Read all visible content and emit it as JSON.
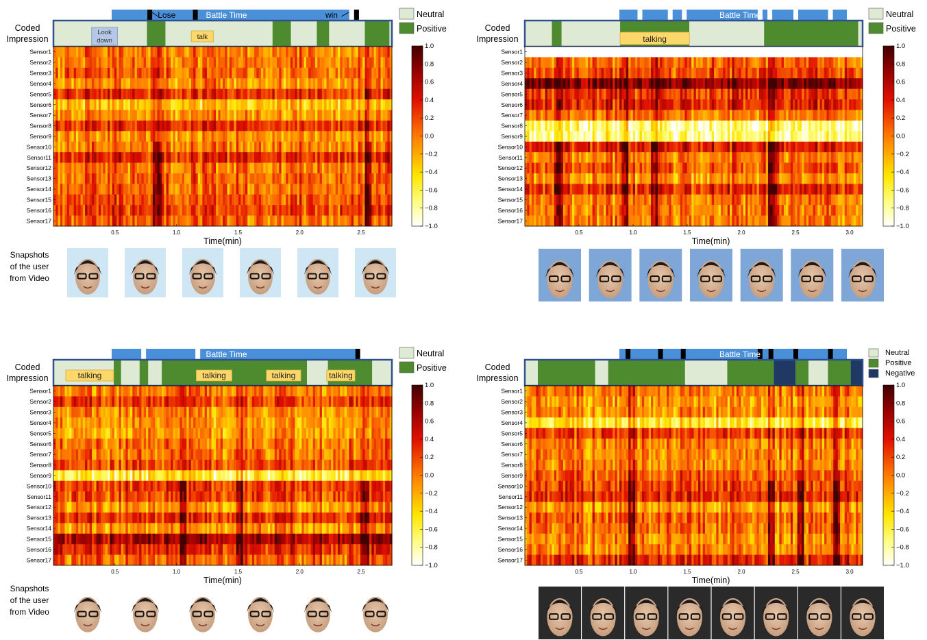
{
  "chart_data": [
    {
      "type": "heatmap",
      "panel": "top-left",
      "coded_label": [
        "Coded",
        "Impression"
      ],
      "battle_label": "Battle Time",
      "battle_markers": [
        0.78,
        1.15,
        2.42,
        2.46
      ],
      "battle_annotations": [
        {
          "text": "Lose",
          "x": 0.92
        },
        {
          "text": "win",
          "x": 2.26
        }
      ],
      "coded_segments": [
        {
          "start": 0.0,
          "end": 0.76,
          "cls": "Neutral"
        },
        {
          "start": 0.76,
          "end": 0.91,
          "cls": "Positive"
        },
        {
          "start": 0.91,
          "end": 1.78,
          "cls": "Neutral"
        },
        {
          "start": 1.78,
          "end": 1.93,
          "cls": "Positive"
        },
        {
          "start": 1.93,
          "end": 2.14,
          "cls": "Neutral"
        },
        {
          "start": 2.14,
          "end": 2.24,
          "cls": "Positive"
        },
        {
          "start": 2.24,
          "end": 2.53,
          "cls": "Neutral"
        },
        {
          "start": 2.53,
          "end": 2.73,
          "cls": "Positive"
        },
        {
          "start": 2.73,
          "end": 2.75,
          "cls": "Neutral"
        }
      ],
      "annotations": [
        {
          "text": "Look down",
          "start": 0.31,
          "end": 0.52,
          "style": "blue"
        },
        {
          "text": "talk",
          "start": 1.12,
          "end": 1.3,
          "style": "yellow"
        }
      ],
      "legend": [
        "Neutral",
        "Positive"
      ],
      "sensors": [
        "Sensor1",
        "Sensor2",
        "Sensor3",
        "Sensor4",
        "Sensor5",
        "Sensor6",
        "Sensor7",
        "Sensor8",
        "Sensor9",
        "Sensor10",
        "Sensor11",
        "Sensor12",
        "Sensor13",
        "Sensor14",
        "Sensor15",
        "Sensor16",
        "Sensor17"
      ],
      "x_range": [
        0.0,
        2.75
      ],
      "x_ticks": [
        0.5,
        1.0,
        1.5,
        2.0,
        2.5
      ],
      "x_tick_labels": [
        "0.5",
        "1.0",
        "1.5",
        "2.0",
        "2.5"
      ],
      "xlabel": "Time(min)",
      "colorbar_ticks": [
        "1.0",
        "0.8",
        "0.6",
        "0.4",
        "0.2",
        "0.0",
        "−0.2",
        "−0.4",
        "−0.6",
        "−0.8",
        "−1.0"
      ],
      "clim": [
        -1.0,
        1.0
      ],
      "dark_times": [
        0.82,
        0.85,
        2.55
      ],
      "snapshots_label": [
        "Snapshots",
        "of the user",
        "from Video"
      ],
      "snapshots": 6,
      "seed": 11
    },
    {
      "type": "heatmap",
      "panel": "top-right",
      "coded_label": [
        "Coded",
        "Impression"
      ],
      "battle_label": "Battle Time",
      "battle_markers": [
        1.06,
        1.34,
        1.47,
        2.17,
        2.26,
        2.5,
        2.82
      ],
      "battle_annotations": [],
      "coded_segments": [
        {
          "start": 0.0,
          "end": 0.25,
          "cls": "Neutral"
        },
        {
          "start": 0.25,
          "end": 0.34,
          "cls": "Positive"
        },
        {
          "start": 0.34,
          "end": 0.88,
          "cls": "Neutral"
        },
        {
          "start": 0.88,
          "end": 1.52,
          "cls": "Positive"
        },
        {
          "start": 1.52,
          "end": 2.21,
          "cls": "Neutral"
        },
        {
          "start": 2.21,
          "end": 3.08,
          "cls": "Positive"
        },
        {
          "start": 3.08,
          "end": 3.12,
          "cls": "Neutral"
        }
      ],
      "annotations": [
        {
          "text": "talking",
          "start": 0.88,
          "end": 1.52,
          "style": "yellow"
        }
      ],
      "legend": [
        "Neutral",
        "Positive"
      ],
      "sensors": [
        "Sensor1",
        "Sensor2",
        "Sensor3",
        "Sensor4",
        "Sensor5",
        "Sensor6",
        "Sensor7",
        "Sensor8",
        "Sensor9",
        "Sensor10",
        "Sensor11",
        "Sensor12",
        "Sensor13",
        "Sensor14",
        "Sensor15",
        "Sensor16",
        "Sensor17"
      ],
      "x_range": [
        0.0,
        3.12
      ],
      "x_ticks": [
        0.5,
        1.0,
        1.5,
        2.0,
        2.5,
        3.0
      ],
      "x_tick_labels": [
        "0.5",
        "1.0",
        "1.5",
        "2.0",
        "2.5",
        "3.0"
      ],
      "xlabel": "Time(min)",
      "colorbar_ticks": [
        "1.0",
        "0.8",
        "0.6",
        "0.4",
        "0.2",
        "0.0",
        "−0.2",
        "−0.4",
        "−0.6",
        "−0.8",
        "−1.0"
      ],
      "clim": [
        -1.0,
        1.0
      ],
      "dark_times": [
        0.3,
        0.92,
        1.18,
        2.26,
        2.28
      ],
      "snapshots_label": [
        "Snapshots",
        "of the user",
        "from Video"
      ],
      "snapshots": 7,
      "seed": 23
    },
    {
      "type": "heatmap",
      "panel": "bottom-left",
      "coded_label": [
        "Coded",
        "Impression"
      ],
      "battle_label": "Battle Time",
      "battle_markers": [
        0.73,
        1.17,
        2.47,
        2.51
      ],
      "battle_annotations": [],
      "coded_segments": [
        {
          "start": 0.0,
          "end": 0.49,
          "cls": "Neutral"
        },
        {
          "start": 0.49,
          "end": 0.55,
          "cls": "Positive"
        },
        {
          "start": 0.55,
          "end": 0.7,
          "cls": "Neutral"
        },
        {
          "start": 0.7,
          "end": 0.77,
          "cls": "Positive"
        },
        {
          "start": 0.77,
          "end": 0.88,
          "cls": "Neutral"
        },
        {
          "start": 0.88,
          "end": 2.06,
          "cls": "Positive"
        },
        {
          "start": 2.06,
          "end": 2.23,
          "cls": "Neutral"
        },
        {
          "start": 2.23,
          "end": 2.59,
          "cls": "Positive"
        },
        {
          "start": 2.59,
          "end": 2.75,
          "cls": "Neutral"
        }
      ],
      "annotations": [
        {
          "text": "talking",
          "start": 0.1,
          "end": 0.49,
          "style": "yellow"
        },
        {
          "text": "talking",
          "start": 1.16,
          "end": 1.45,
          "style": "yellow"
        },
        {
          "text": "talking",
          "start": 1.73,
          "end": 2.01,
          "style": "yellow"
        },
        {
          "text": "talking",
          "start": 2.22,
          "end": 2.45,
          "style": "yellow"
        }
      ],
      "legend": [
        "Neutral",
        "Positive"
      ],
      "sensors": [
        "Sensor1",
        "Sensor2",
        "Sensor3",
        "Sensor4",
        "Sensor5",
        "Sensor6",
        "Sensor7",
        "Sensor8",
        "Sensor9",
        "Sensor10",
        "Sensor11",
        "Sensor12",
        "Sensor13",
        "Sensor14",
        "Sensor15",
        "Sensor16",
        "Sensor17"
      ],
      "x_range": [
        0.0,
        2.75
      ],
      "x_ticks": [
        0.5,
        1.0,
        1.5,
        2.0,
        2.5
      ],
      "x_tick_labels": [
        "0.5",
        "1.0",
        "1.5",
        "2.0",
        "2.5"
      ],
      "xlabel": "Time(min)",
      "colorbar_ticks": [
        "1.0",
        "0.8",
        "0.6",
        "0.4",
        "0.2",
        "0.0",
        "−0.2",
        "−0.4",
        "−0.6",
        "−0.8",
        "−1.0"
      ],
      "clim": [
        -1.0,
        1.0
      ],
      "dark_times": [
        1.04,
        1.5,
        2.52
      ],
      "snapshots_label": [
        "Snapshots",
        "of the user",
        "from Video"
      ],
      "snapshots": 6,
      "seed": 37
    },
    {
      "type": "heatmap",
      "panel": "bottom-right",
      "coded_label": [
        "Coded",
        "Impression"
      ],
      "battle_label": "Battle Time",
      "battle_markers": [
        0.95,
        1.25,
        1.46,
        2.17,
        2.27,
        2.5,
        2.82
      ],
      "battle_annotations": [],
      "coded_segments": [
        {
          "start": 0.0,
          "end": 0.12,
          "cls": "Neutral"
        },
        {
          "start": 0.12,
          "end": 0.65,
          "cls": "Positive"
        },
        {
          "start": 0.65,
          "end": 0.77,
          "cls": "Neutral"
        },
        {
          "start": 0.77,
          "end": 1.48,
          "cls": "Positive"
        },
        {
          "start": 1.48,
          "end": 1.87,
          "cls": "Neutral"
        },
        {
          "start": 1.87,
          "end": 2.3,
          "cls": "Positive"
        },
        {
          "start": 2.3,
          "end": 2.5,
          "cls": "Negative"
        },
        {
          "start": 2.5,
          "end": 2.62,
          "cls": "Positive"
        },
        {
          "start": 2.62,
          "end": 2.8,
          "cls": "Neutral"
        },
        {
          "start": 2.8,
          "end": 3.01,
          "cls": "Positive"
        },
        {
          "start": 3.01,
          "end": 3.12,
          "cls": "Negative"
        }
      ],
      "annotations": [],
      "legend": [
        "Neutral",
        "Positive",
        "Negative"
      ],
      "sensors": [
        "Sensor1",
        "Sensor2",
        "Sensor3",
        "Sensor4",
        "Sensor5",
        "Sensor6",
        "Sensor7",
        "Sensor8",
        "Sensor9",
        "Sensor10",
        "Sensor11",
        "Sensor12",
        "Sensor13",
        "Sensor14",
        "Sensor15",
        "Sensor16",
        "Sensor17"
      ],
      "x_range": [
        0.0,
        3.12
      ],
      "x_ticks": [
        0.5,
        1.0,
        1.5,
        2.0,
        2.5,
        3.0
      ],
      "x_tick_labels": [
        "0.5",
        "1.0",
        "1.5",
        "2.0",
        "2.5",
        "3.0"
      ],
      "xlabel": "Time(min)",
      "colorbar_ticks": [
        "1.0",
        "0.8",
        "0.6",
        "0.4",
        "0.2",
        "0.0",
        "−0.2",
        "−0.4",
        "−0.6",
        "−0.8",
        "−1.0"
      ],
      "clim": [
        -1.0,
        1.0
      ],
      "dark_times": [
        0.97,
        2.27,
        2.53,
        2.87
      ],
      "snapshots_label": [
        "Snapshots",
        "of the user",
        "from Video"
      ],
      "snapshots": 8,
      "seed": 53
    }
  ],
  "colors": {
    "neutral": "#dfead5",
    "positive": "#4e8a2e",
    "negative": "#1f3864",
    "battle": "#4a90d9",
    "frame": "#2f4f8f",
    "talk_box": "#fcd86a",
    "look_box": "#b4c7e7"
  }
}
